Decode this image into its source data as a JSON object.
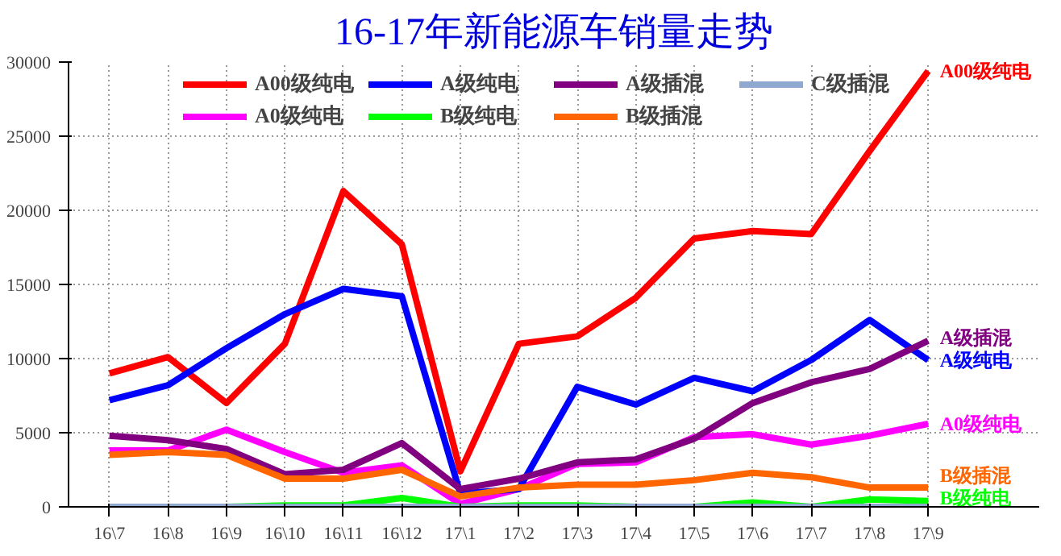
{
  "chart_data": {
    "type": "line",
    "title": "16-17年新能源车销量走势",
    "categories": [
      "16\\7",
      "16\\8",
      "16\\9",
      "16\\10",
      "16\\11",
      "16\\12",
      "17\\1",
      "17\\2",
      "17\\3",
      "17\\4",
      "17\\5",
      "17\\6",
      "17\\7",
      "17\\8",
      "17\\9"
    ],
    "series": [
      {
        "name": "A00级纯电",
        "color": "#ff0000",
        "values": [
          9000,
          10100,
          7000,
          11000,
          21300,
          17700,
          2400,
          11000,
          11500,
          14100,
          18100,
          18600,
          18400,
          24000,
          29400
        ]
      },
      {
        "name": "A0级纯电",
        "color": "#ff00ff",
        "values": [
          3800,
          3800,
          5200,
          3700,
          2300,
          2800,
          200,
          1200,
          2900,
          3000,
          4700,
          4900,
          4200,
          4800,
          5600
        ]
      },
      {
        "name": "A级纯电",
        "color": "#0000ff",
        "values": [
          7200,
          8200,
          10700,
          13000,
          14700,
          14200,
          900,
          1200,
          8100,
          6900,
          8700,
          7800,
          9900,
          12600,
          9900
        ]
      },
      {
        "name": "B级纯电",
        "color": "#00ff00",
        "values": [
          0,
          0,
          0,
          100,
          100,
          600,
          0,
          100,
          100,
          0,
          0,
          300,
          0,
          500,
          400
        ]
      },
      {
        "name": "A级插混",
        "color": "#800080",
        "values": [
          4800,
          4500,
          3900,
          2200,
          2500,
          4300,
          1200,
          1900,
          3000,
          3200,
          4600,
          7000,
          8400,
          9300,
          11200
        ]
      },
      {
        "name": "B级插混",
        "color": "#ff6600",
        "values": [
          3500,
          3700,
          3500,
          1900,
          1900,
          2500,
          700,
          1300,
          1500,
          1500,
          1800,
          2300,
          2000,
          1300,
          1300
        ]
      },
      {
        "name": "C级插混",
        "color": "#8fa8d0",
        "values": [
          0,
          0,
          0,
          0,
          0,
          0,
          0,
          0,
          0,
          0,
          0,
          0,
          0,
          0,
          0
        ]
      }
    ],
    "ylim": [
      0,
      30000
    ],
    "yticks": [
      0,
      5000,
      10000,
      15000,
      20000,
      25000,
      30000
    ],
    "grid": true,
    "legend": "top",
    "marker": "none",
    "line_style": "solid",
    "annotations": [
      "A00级纯电",
      "A级插混",
      "A级纯电",
      "A0级纯电",
      "B级插混",
      "B级纯电"
    ]
  }
}
